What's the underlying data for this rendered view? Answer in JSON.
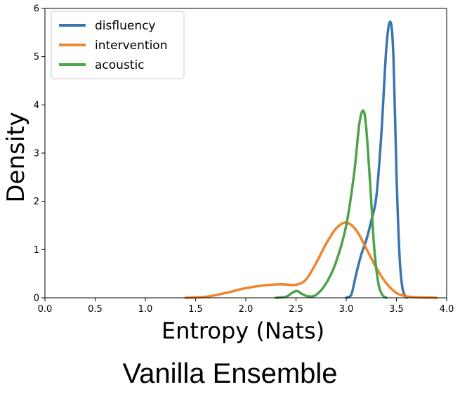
{
  "caption": "Vanilla Ensemble",
  "chart_data": {
    "type": "line",
    "xlabel": "Entropy (Nats)",
    "ylabel": "Density",
    "xlim": [
      0.0,
      4.0
    ],
    "ylim": [
      0,
      6
    ],
    "x_ticks": [
      "0.0",
      "0.5",
      "1.0",
      "1.5",
      "2.0",
      "2.5",
      "3.0",
      "3.5",
      "4.0"
    ],
    "y_ticks": [
      "0",
      "1",
      "2",
      "3",
      "4",
      "5",
      "6"
    ],
    "grid": false,
    "legend": "top-left",
    "series": [
      {
        "name": "disfluency",
        "color": "#3a75b0",
        "points": [
          [
            3.0,
            0.0
          ],
          [
            3.05,
            0.06
          ],
          [
            3.1,
            0.5
          ],
          [
            3.15,
            0.9
          ],
          [
            3.2,
            1.2
          ],
          [
            3.25,
            1.6
          ],
          [
            3.3,
            2.1
          ],
          [
            3.35,
            3.4
          ],
          [
            3.4,
            5.2
          ],
          [
            3.44,
            5.72
          ],
          [
            3.47,
            5.0
          ],
          [
            3.5,
            2.6
          ],
          [
            3.53,
            0.9
          ],
          [
            3.56,
            0.2
          ],
          [
            3.6,
            0.0
          ]
        ]
      },
      {
        "name": "intervention",
        "color": "#f0852d",
        "points": [
          [
            1.4,
            0.0
          ],
          [
            1.6,
            0.02
          ],
          [
            1.8,
            0.1
          ],
          [
            2.0,
            0.2
          ],
          [
            2.2,
            0.26
          ],
          [
            2.35,
            0.28
          ],
          [
            2.5,
            0.27
          ],
          [
            2.6,
            0.38
          ],
          [
            2.7,
            0.72
          ],
          [
            2.8,
            1.12
          ],
          [
            2.9,
            1.44
          ],
          [
            3.0,
            1.56
          ],
          [
            3.1,
            1.4
          ],
          [
            3.2,
            1.02
          ],
          [
            3.3,
            0.62
          ],
          [
            3.4,
            0.3
          ],
          [
            3.5,
            0.1
          ],
          [
            3.6,
            0.03
          ],
          [
            3.7,
            0.01
          ],
          [
            3.9,
            0.0
          ]
        ]
      },
      {
        "name": "acoustic",
        "color": "#4ea24a",
        "points": [
          [
            2.3,
            0.0
          ],
          [
            2.4,
            0.02
          ],
          [
            2.46,
            0.1
          ],
          [
            2.51,
            0.14
          ],
          [
            2.56,
            0.08
          ],
          [
            2.62,
            0.03
          ],
          [
            2.7,
            0.06
          ],
          [
            2.8,
            0.3
          ],
          [
            2.9,
            0.75
          ],
          [
            3.0,
            1.5
          ],
          [
            3.08,
            2.6
          ],
          [
            3.13,
            3.6
          ],
          [
            3.17,
            3.88
          ],
          [
            3.2,
            3.5
          ],
          [
            3.24,
            2.3
          ],
          [
            3.28,
            1.0
          ],
          [
            3.32,
            0.3
          ],
          [
            3.36,
            0.06
          ],
          [
            3.4,
            0.0
          ]
        ]
      }
    ]
  }
}
